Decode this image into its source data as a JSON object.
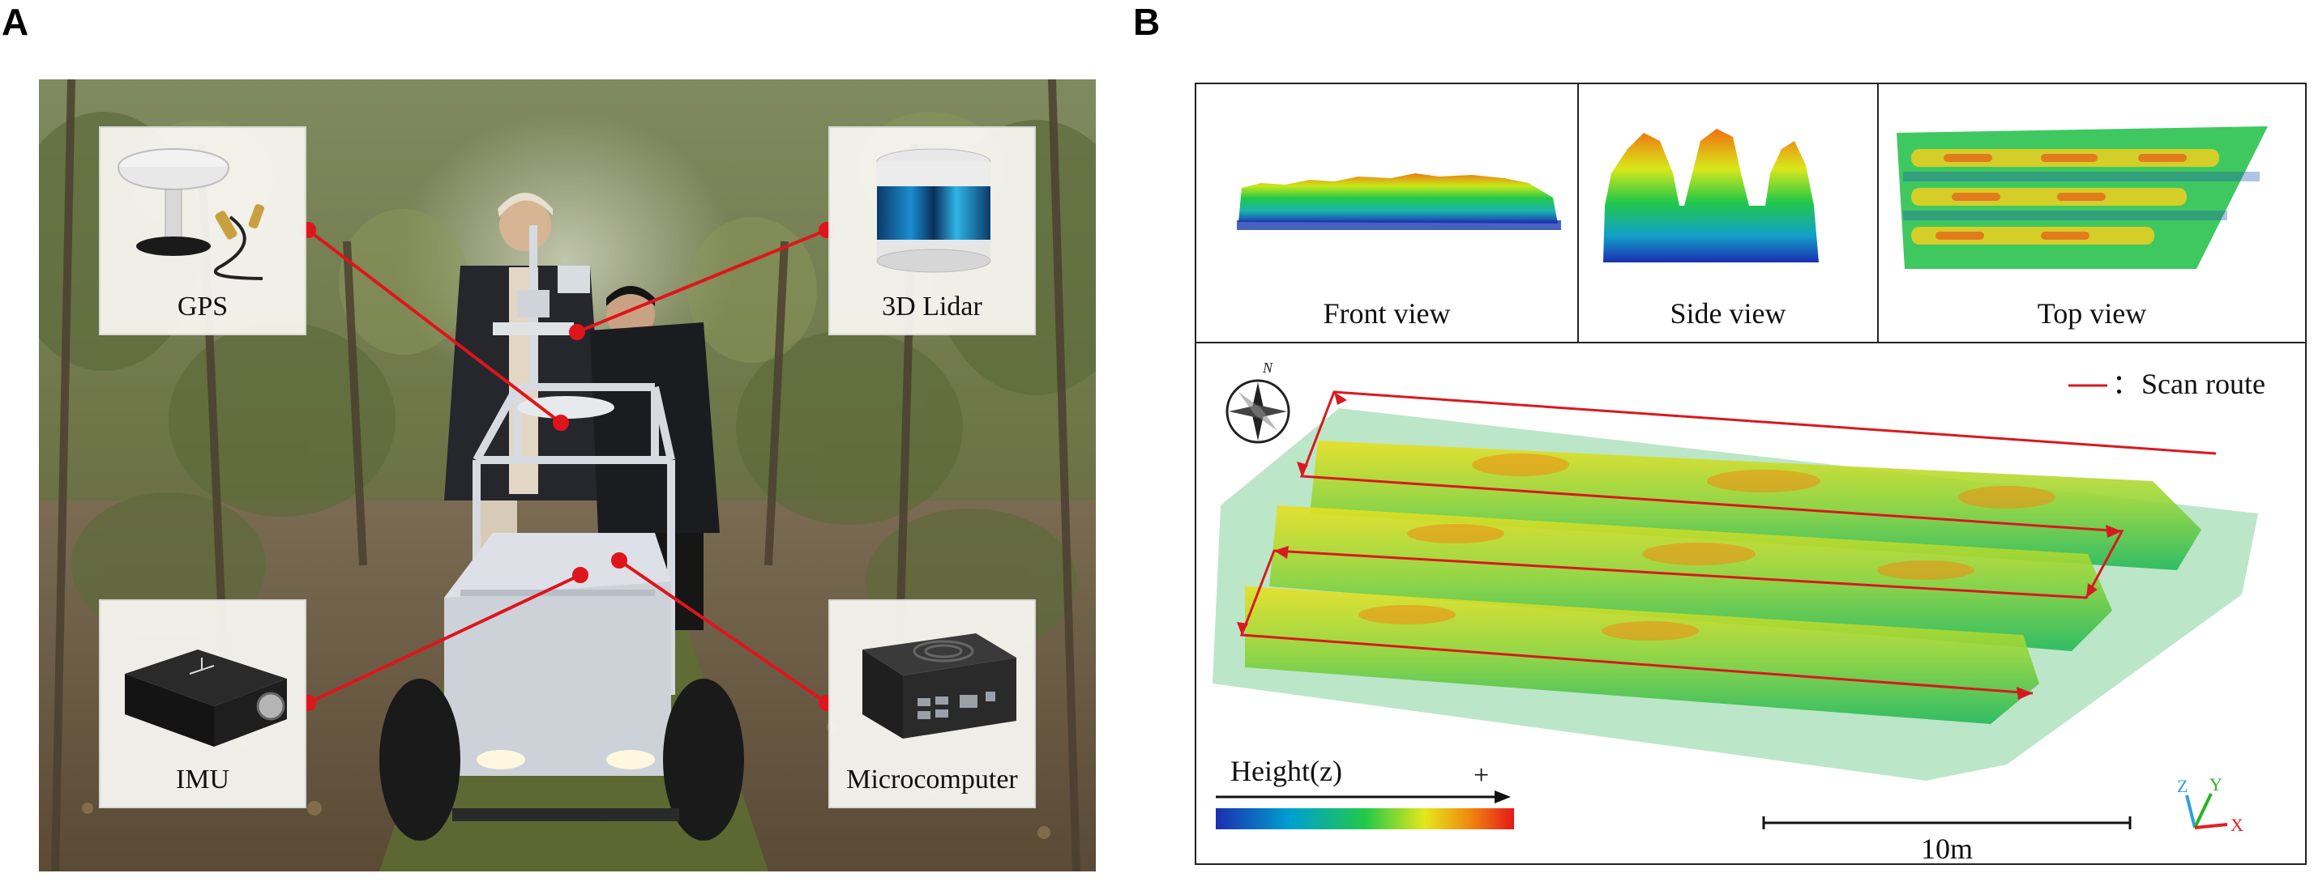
{
  "panels": {
    "a": {
      "letter": "A",
      "callouts": {
        "gps": "GPS",
        "lidar": "3D Lidar",
        "imu": "IMU",
        "microcomputer": "Microcomputer"
      }
    },
    "b": {
      "letter": "B",
      "views": {
        "front": "Front view",
        "side": "Side view",
        "top": "Top view"
      },
      "legend": {
        "scan_route_label": "Scan route",
        "separator": "："
      },
      "compass_north": "N",
      "height_label": "Height(z)",
      "height_plus": "+",
      "scale_bar_label": "10m",
      "axes": {
        "z": "Z",
        "y": "Y",
        "x": "X"
      }
    }
  },
  "colors": {
    "callout_line": "#e0141b",
    "scan_route": "#d8191f",
    "height_ramp": [
      "#1a2fb0",
      "#00a0d0",
      "#22c84a",
      "#e4e81a",
      "#f08a10",
      "#e41818"
    ],
    "axis_z": "#2aa0e0",
    "axis_y": "#28b428",
    "axis_x": "#e02020"
  },
  "icons": [
    "compass-icon",
    "gps-antenna-icon",
    "lidar-sensor-icon",
    "imu-sensor-icon",
    "microcomputer-icon"
  ]
}
